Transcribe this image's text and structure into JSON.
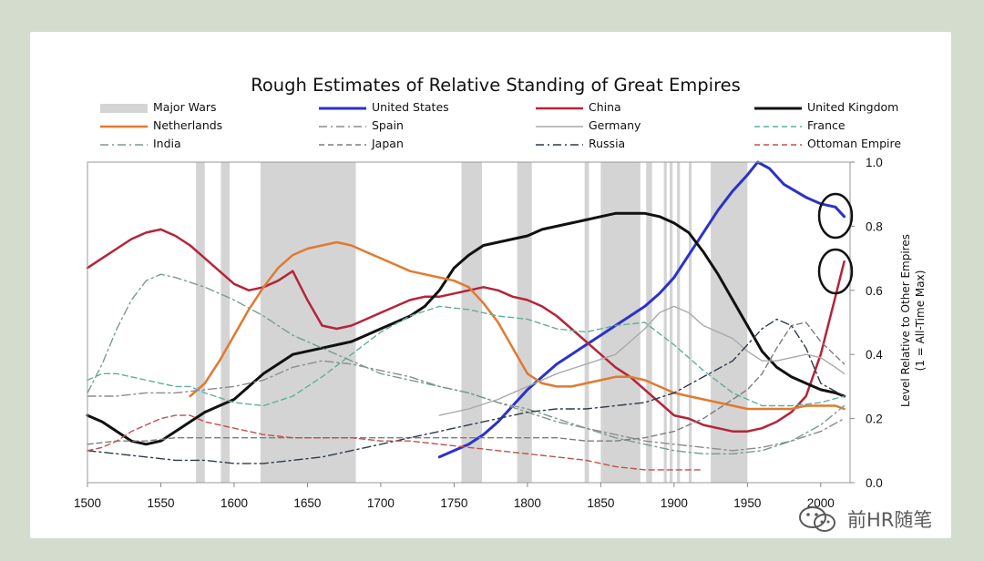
{
  "chart_data": {
    "type": "line",
    "title": "Rough Estimates of Relative Standing of Great Empires",
    "ylabel_line1": "Level Relative to Other Empires",
    "ylabel_line2": "(1 = All-Time Max)",
    "xlim": [
      1500,
      2020
    ],
    "ylim": [
      0,
      1
    ],
    "xticks": [
      1500,
      1550,
      1600,
      1650,
      1700,
      1750,
      1800,
      1850,
      1900,
      1950,
      2000
    ],
    "yticks": [
      "0.0",
      "0.2",
      "0.4",
      "0.6",
      "0.8",
      "1.0"
    ],
    "war_label": "Major Wars",
    "war_color": "#d4d4d4",
    "major_wars": [
      [
        1574,
        1580
      ],
      [
        1591,
        1597
      ],
      [
        1618,
        1683
      ],
      [
        1755,
        1769
      ],
      [
        1793,
        1803
      ],
      [
        1839,
        1842
      ],
      [
        1850,
        1877
      ],
      [
        1881,
        1885
      ],
      [
        1893,
        1895
      ],
      [
        1897,
        1899
      ],
      [
        1902,
        1904
      ],
      [
        1910,
        1912
      ],
      [
        1925,
        1950
      ]
    ],
    "series": [
      {
        "name": "United States",
        "color": "#2b32c8",
        "style": "solid",
        "width": 3,
        "x": [
          1740,
          1750,
          1760,
          1770,
          1780,
          1790,
          1800,
          1810,
          1820,
          1830,
          1840,
          1850,
          1860,
          1870,
          1880,
          1890,
          1900,
          1910,
          1920,
          1930,
          1940,
          1950,
          1957,
          1965,
          1975,
          1990,
          2000,
          2010,
          2016
        ],
        "y": [
          0.08,
          0.1,
          0.12,
          0.15,
          0.19,
          0.24,
          0.29,
          0.33,
          0.37,
          0.4,
          0.43,
          0.46,
          0.49,
          0.52,
          0.55,
          0.59,
          0.64,
          0.71,
          0.78,
          0.85,
          0.91,
          0.96,
          1.0,
          0.98,
          0.93,
          0.89,
          0.87,
          0.86,
          0.83
        ]
      },
      {
        "name": "China",
        "color": "#b5243a",
        "style": "solid",
        "width": 2.5,
        "x": [
          1500,
          1510,
          1520,
          1530,
          1540,
          1550,
          1560,
          1570,
          1580,
          1590,
          1600,
          1610,
          1620,
          1630,
          1640,
          1650,
          1660,
          1670,
          1680,
          1690,
          1700,
          1710,
          1720,
          1730,
          1740,
          1750,
          1760,
          1770,
          1780,
          1790,
          1800,
          1810,
          1820,
          1830,
          1840,
          1850,
          1860,
          1870,
          1880,
          1890,
          1900,
          1910,
          1920,
          1930,
          1940,
          1950,
          1960,
          1970,
          1980,
          1990,
          2000,
          2010,
          2016
        ],
        "y": [
          0.67,
          0.7,
          0.73,
          0.76,
          0.78,
          0.79,
          0.77,
          0.74,
          0.7,
          0.66,
          0.62,
          0.6,
          0.61,
          0.63,
          0.66,
          0.57,
          0.49,
          0.48,
          0.49,
          0.51,
          0.53,
          0.55,
          0.57,
          0.58,
          0.58,
          0.59,
          0.6,
          0.61,
          0.6,
          0.58,
          0.57,
          0.55,
          0.52,
          0.48,
          0.44,
          0.4,
          0.36,
          0.33,
          0.29,
          0.25,
          0.21,
          0.2,
          0.18,
          0.17,
          0.16,
          0.16,
          0.17,
          0.19,
          0.22,
          0.27,
          0.4,
          0.58,
          0.69
        ]
      },
      {
        "name": "United Kingdom",
        "color": "#111111",
        "style": "solid",
        "width": 3,
        "x": [
          1500,
          1510,
          1520,
          1530,
          1540,
          1550,
          1560,
          1570,
          1580,
          1590,
          1600,
          1610,
          1620,
          1630,
          1640,
          1650,
          1660,
          1670,
          1680,
          1690,
          1700,
          1710,
          1720,
          1730,
          1740,
          1750,
          1760,
          1770,
          1780,
          1790,
          1800,
          1810,
          1820,
          1830,
          1840,
          1850,
          1860,
          1870,
          1880,
          1890,
          1900,
          1910,
          1920,
          1930,
          1940,
          1950,
          1960,
          1970,
          1980,
          1990,
          2000,
          2010,
          2016
        ],
        "y": [
          0.21,
          0.19,
          0.16,
          0.13,
          0.12,
          0.13,
          0.16,
          0.19,
          0.22,
          0.24,
          0.26,
          0.3,
          0.34,
          0.37,
          0.4,
          0.41,
          0.42,
          0.43,
          0.44,
          0.46,
          0.48,
          0.5,
          0.52,
          0.55,
          0.6,
          0.67,
          0.71,
          0.74,
          0.75,
          0.76,
          0.77,
          0.79,
          0.8,
          0.81,
          0.82,
          0.83,
          0.84,
          0.84,
          0.84,
          0.83,
          0.81,
          0.78,
          0.72,
          0.65,
          0.57,
          0.49,
          0.41,
          0.36,
          0.33,
          0.31,
          0.29,
          0.28,
          0.27
        ]
      },
      {
        "name": "Netherlands",
        "color": "#e07a2e",
        "style": "solid",
        "width": 2.5,
        "x": [
          1570,
          1580,
          1590,
          1600,
          1610,
          1620,
          1630,
          1640,
          1650,
          1660,
          1670,
          1680,
          1690,
          1700,
          1710,
          1720,
          1730,
          1740,
          1750,
          1760,
          1770,
          1780,
          1790,
          1800,
          1810,
          1820,
          1830,
          1840,
          1850,
          1860,
          1870,
          1880,
          1890,
          1900,
          1910,
          1920,
          1930,
          1940,
          1950,
          1960,
          1970,
          1980,
          1990,
          2000,
          2010,
          2016
        ],
        "y": [
          0.27,
          0.31,
          0.38,
          0.46,
          0.54,
          0.61,
          0.67,
          0.71,
          0.73,
          0.74,
          0.75,
          0.74,
          0.72,
          0.7,
          0.68,
          0.66,
          0.65,
          0.64,
          0.63,
          0.61,
          0.56,
          0.5,
          0.42,
          0.34,
          0.31,
          0.3,
          0.3,
          0.31,
          0.32,
          0.33,
          0.33,
          0.32,
          0.3,
          0.28,
          0.27,
          0.26,
          0.25,
          0.24,
          0.23,
          0.23,
          0.23,
          0.23,
          0.24,
          0.24,
          0.24,
          0.23
        ]
      },
      {
        "name": "Spain",
        "color": "#8c8c8c",
        "style": "dashdot",
        "width": 1.4,
        "x": [
          1500,
          1520,
          1540,
          1560,
          1580,
          1600,
          1620,
          1640,
          1660,
          1680,
          1700,
          1720,
          1740,
          1760,
          1780,
          1800,
          1820,
          1840,
          1860,
          1880,
          1900,
          1920,
          1940,
          1960,
          1980,
          2000,
          2016
        ],
        "y": [
          0.27,
          0.27,
          0.28,
          0.28,
          0.29,
          0.3,
          0.32,
          0.36,
          0.38,
          0.37,
          0.35,
          0.33,
          0.3,
          0.28,
          0.25,
          0.22,
          0.19,
          0.17,
          0.15,
          0.13,
          0.12,
          0.11,
          0.1,
          0.11,
          0.13,
          0.16,
          0.2
        ]
      },
      {
        "name": "Germany",
        "color": "#a9a9a9",
        "style": "solid",
        "width": 1.4,
        "x": [
          1740,
          1760,
          1780,
          1800,
          1820,
          1840,
          1860,
          1870,
          1880,
          1890,
          1900,
          1910,
          1920,
          1930,
          1940,
          1950,
          1960,
          1970,
          1980,
          1990,
          2000,
          2010,
          2016
        ],
        "y": [
          0.21,
          0.23,
          0.26,
          0.3,
          0.34,
          0.37,
          0.4,
          0.44,
          0.48,
          0.53,
          0.55,
          0.53,
          0.49,
          0.47,
          0.45,
          0.41,
          0.38,
          0.38,
          0.39,
          0.4,
          0.39,
          0.36,
          0.34
        ]
      },
      {
        "name": "France",
        "color": "#5fae9d",
        "style": "dashed",
        "width": 1.4,
        "x": [
          1500,
          1510,
          1520,
          1530,
          1540,
          1550,
          1560,
          1570,
          1580,
          1600,
          1620,
          1640,
          1660,
          1680,
          1700,
          1720,
          1740,
          1760,
          1780,
          1800,
          1820,
          1840,
          1860,
          1880,
          1900,
          1920,
          1940,
          1960,
          1980,
          2000,
          2016
        ],
        "y": [
          0.32,
          0.34,
          0.34,
          0.33,
          0.32,
          0.31,
          0.3,
          0.3,
          0.28,
          0.25,
          0.24,
          0.27,
          0.33,
          0.4,
          0.47,
          0.52,
          0.55,
          0.54,
          0.52,
          0.51,
          0.48,
          0.47,
          0.49,
          0.5,
          0.43,
          0.35,
          0.28,
          0.24,
          0.24,
          0.25,
          0.27
        ]
      },
      {
        "name": "India",
        "color": "#7a9c8c",
        "style": "dashdot",
        "width": 1.4,
        "x": [
          1500,
          1510,
          1520,
          1530,
          1540,
          1550,
          1560,
          1580,
          1600,
          1620,
          1640,
          1660,
          1680,
          1700,
          1720,
          1740,
          1760,
          1780,
          1800,
          1820,
          1840,
          1860,
          1880,
          1900,
          1920,
          1940,
          1960,
          1980,
          2000,
          2016
        ],
        "y": [
          0.28,
          0.37,
          0.48,
          0.57,
          0.63,
          0.65,
          0.64,
          0.61,
          0.57,
          0.52,
          0.46,
          0.42,
          0.38,
          0.34,
          0.32,
          0.3,
          0.28,
          0.25,
          0.23,
          0.2,
          0.17,
          0.14,
          0.12,
          0.1,
          0.09,
          0.09,
          0.1,
          0.13,
          0.18,
          0.24
        ]
      },
      {
        "name": "Japan",
        "color": "#7d7d7d",
        "style": "dashed",
        "width": 1.4,
        "x": [
          1500,
          1520,
          1540,
          1560,
          1580,
          1600,
          1620,
          1640,
          1660,
          1680,
          1700,
          1720,
          1740,
          1760,
          1780,
          1800,
          1820,
          1840,
          1860,
          1880,
          1900,
          1920,
          1940,
          1950,
          1960,
          1970,
          1980,
          1990,
          2000,
          2016
        ],
        "y": [
          0.12,
          0.13,
          0.13,
          0.14,
          0.14,
          0.14,
          0.14,
          0.14,
          0.14,
          0.14,
          0.14,
          0.14,
          0.14,
          0.14,
          0.14,
          0.14,
          0.14,
          0.13,
          0.13,
          0.14,
          0.16,
          0.2,
          0.26,
          0.29,
          0.34,
          0.42,
          0.49,
          0.5,
          0.44,
          0.37
        ]
      },
      {
        "name": "Russia",
        "color": "#2e3a4a",
        "style": "dashdot",
        "width": 1.4,
        "x": [
          1500,
          1520,
          1540,
          1560,
          1580,
          1600,
          1620,
          1640,
          1660,
          1680,
          1700,
          1720,
          1740,
          1760,
          1780,
          1800,
          1820,
          1840,
          1860,
          1880,
          1900,
          1920,
          1940,
          1950,
          1960,
          1970,
          1980,
          1990,
          2000,
          2016
        ],
        "y": [
          0.1,
          0.09,
          0.08,
          0.07,
          0.07,
          0.06,
          0.06,
          0.07,
          0.08,
          0.1,
          0.12,
          0.14,
          0.16,
          0.18,
          0.2,
          0.22,
          0.23,
          0.23,
          0.24,
          0.25,
          0.28,
          0.33,
          0.38,
          0.43,
          0.48,
          0.51,
          0.49,
          0.42,
          0.31,
          0.27
        ]
      },
      {
        "name": "Ottoman Empire",
        "color": "#c0504d",
        "style": "dashed",
        "width": 1.4,
        "x": [
          1500,
          1510,
          1520,
          1530,
          1540,
          1550,
          1560,
          1570,
          1580,
          1600,
          1620,
          1640,
          1660,
          1680,
          1700,
          1720,
          1740,
          1760,
          1780,
          1800,
          1820,
          1840,
          1860,
          1880,
          1900,
          1920
        ],
        "y": [
          0.1,
          0.11,
          0.13,
          0.16,
          0.18,
          0.2,
          0.21,
          0.21,
          0.19,
          0.17,
          0.15,
          0.14,
          0.14,
          0.14,
          0.13,
          0.13,
          0.12,
          0.11,
          0.1,
          0.09,
          0.08,
          0.07,
          0.05,
          0.04,
          0.04,
          0.04
        ]
      }
    ]
  },
  "watermark": "前HR随笔"
}
